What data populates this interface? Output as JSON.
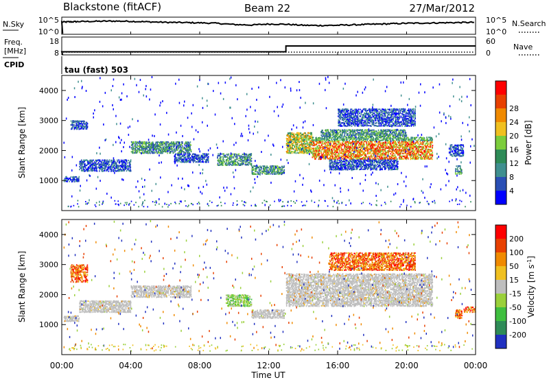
{
  "header": {
    "station": "Blackstone (fitACF)",
    "beam": "Beam 22",
    "date": "27/Mar/2012"
  },
  "colors": {
    "foreground": "#000000",
    "background": "#ffffff",
    "velocity_ground": "#bebebe"
  },
  "chart_data": [
    {
      "type": "line",
      "name": "noise-panel",
      "left_label": "N.Sky",
      "right_label": "N.Search",
      "left_ticks": [
        "10^5",
        "10^0"
      ],
      "right_ticks": [
        "10^5",
        "10^0"
      ],
      "series": [
        {
          "name": "N.Sky",
          "style": "solid"
        },
        {
          "name": "N.Search",
          "style": "dotted"
        }
      ],
      "x_hours": [
        0,
        0.5,
        1,
        2,
        3,
        4,
        5,
        6,
        7,
        8,
        9,
        10,
        11,
        12,
        13,
        14,
        15,
        16,
        17,
        18,
        19,
        20,
        21,
        22,
        23,
        24
      ],
      "sky_log": [
        4.4,
        4.5,
        4.6,
        4.7,
        4.8,
        4.7,
        4.5,
        4.3,
        4.2,
        4.1,
        3.9,
        3.4,
        3.2,
        3.6,
        3.5,
        3.1,
        3.0,
        3.1,
        3.3,
        3.5,
        3.7,
        3.9,
        4.0,
        4.1,
        4.2,
        4.3
      ]
    },
    {
      "type": "line",
      "name": "frequency-panel",
      "left_label_top": "Freq.",
      "left_label_unit": "[MHz]",
      "right_label": "Nave",
      "left_ticks": [
        "18",
        "8"
      ],
      "right_ticks": [
        "60",
        "0"
      ],
      "cpid_label": "CPID",
      "cpid_text": "tau (fast) 503",
      "freq_segments": [
        {
          "from_hour": 0,
          "to_hour": 13,
          "value": 10.5
        },
        {
          "from_hour": 13,
          "to_hour": 24,
          "value": 15.2
        }
      ]
    },
    {
      "type": "heatmap",
      "name": "power",
      "ylabel": "Slant Range [km]",
      "yticks": [
        "1000",
        "2000",
        "3000",
        "4000"
      ],
      "colorbar_label": "Power [dB]",
      "colorbar_ticks": [
        "4",
        "8",
        "12",
        "16",
        "20",
        "24",
        "28"
      ],
      "colorbar_colors": [
        "#0000ff",
        "#2a4fb5",
        "#3f8f8f",
        "#2e8b57",
        "#7ccd3c",
        "#f0c020",
        "#f08a00",
        "#e84000",
        "#ff0000"
      ],
      "bands": [
        {
          "t0": 0.1,
          "t1": 1.0,
          "r0": 950,
          "r1": 1150,
          "cls": 1
        },
        {
          "t0": 1.0,
          "t1": 4.0,
          "r0": 1300,
          "r1": 1700,
          "cls": 1
        },
        {
          "t0": 4.0,
          "t1": 7.5,
          "r0": 1900,
          "r1": 2300,
          "cls": 2
        },
        {
          "t0": 6.5,
          "t1": 8.5,
          "r0": 1600,
          "r1": 1900,
          "cls": 1
        },
        {
          "t0": 9.0,
          "t1": 11.0,
          "r0": 1500,
          "r1": 1900,
          "cls": 2
        },
        {
          "t0": 11.0,
          "t1": 12.9,
          "r0": 1200,
          "r1": 1500,
          "cls": 2
        },
        {
          "t0": 13.0,
          "t1": 14.5,
          "r0": 1900,
          "r1": 2600,
          "cls": 3
        },
        {
          "t0": 14.5,
          "t1": 21.5,
          "r0": 1700,
          "r1": 2450,
          "cls": 4
        },
        {
          "t0": 15.0,
          "t1": 20.0,
          "r0": 2450,
          "r1": 2700,
          "cls": 2
        },
        {
          "t0": 15.5,
          "t1": 19.5,
          "r0": 1350,
          "r1": 1700,
          "cls": 1
        },
        {
          "t0": 22.5,
          "t1": 23.3,
          "r0": 1800,
          "r1": 2200,
          "cls": 1
        },
        {
          "t0": 22.8,
          "t1": 23.2,
          "r0": 1200,
          "r1": 1500,
          "cls": 2
        },
        {
          "t0": 0.5,
          "t1": 1.5,
          "r0": 2700,
          "r1": 3000,
          "cls": 1
        },
        {
          "t0": 16.0,
          "t1": 20.5,
          "r0": 2800,
          "r1": 3400,
          "cls": 1
        }
      ]
    },
    {
      "type": "heatmap",
      "name": "velocity",
      "ylabel": "Slant Range [km]",
      "yticks": [
        "1000",
        "2000",
        "3000",
        "4000"
      ],
      "colorbar_label": "Velocity [m s",
      "colorbar_label_sup": "-1",
      "colorbar_label_end": "]",
      "colorbar_ticks": [
        "200",
        "100",
        "50",
        "15",
        "-15",
        "-50",
        "-100",
        "-200"
      ],
      "colorbar_colors": [
        "#2030c0",
        "#2e8b57",
        "#3fbf3f",
        "#9ad03a",
        "#bebebe",
        "#f0c020",
        "#f08a00",
        "#e84000",
        "#ff0000"
      ],
      "bands": [
        {
          "t0": 0.1,
          "t1": 1.0,
          "r0": 1100,
          "r1": 1300,
          "cls": "g"
        },
        {
          "t0": 1.0,
          "t1": 4.0,
          "r0": 1400,
          "r1": 1800,
          "cls": "g"
        },
        {
          "t0": 4.0,
          "t1": 7.5,
          "r0": 1900,
          "r1": 2300,
          "cls": "g"
        },
        {
          "t0": 9.5,
          "t1": 11.0,
          "r0": 1600,
          "r1": 2000,
          "cls": "p"
        },
        {
          "t0": 11.0,
          "t1": 12.9,
          "r0": 1200,
          "r1": 1500,
          "cls": "g"
        },
        {
          "t0": 13.0,
          "t1": 21.5,
          "r0": 1600,
          "r1": 2700,
          "cls": "g"
        },
        {
          "t0": 15.5,
          "t1": 20.5,
          "r0": 2800,
          "r1": 3400,
          "cls": "r"
        },
        {
          "t0": 0.5,
          "t1": 1.5,
          "r0": 2400,
          "r1": 3000,
          "cls": "r"
        },
        {
          "t0": 22.8,
          "t1": 23.2,
          "r0": 1200,
          "r1": 1500,
          "cls": "r"
        },
        {
          "t0": 23.3,
          "t1": 24.0,
          "r0": 1400,
          "r1": 1600,
          "cls": "r"
        }
      ]
    }
  ],
  "time_axis": {
    "label": "Time UT",
    "ticks": [
      "00:00",
      "04:00",
      "08:00",
      "12:00",
      "16:00",
      "20:00",
      "00:00"
    ]
  }
}
